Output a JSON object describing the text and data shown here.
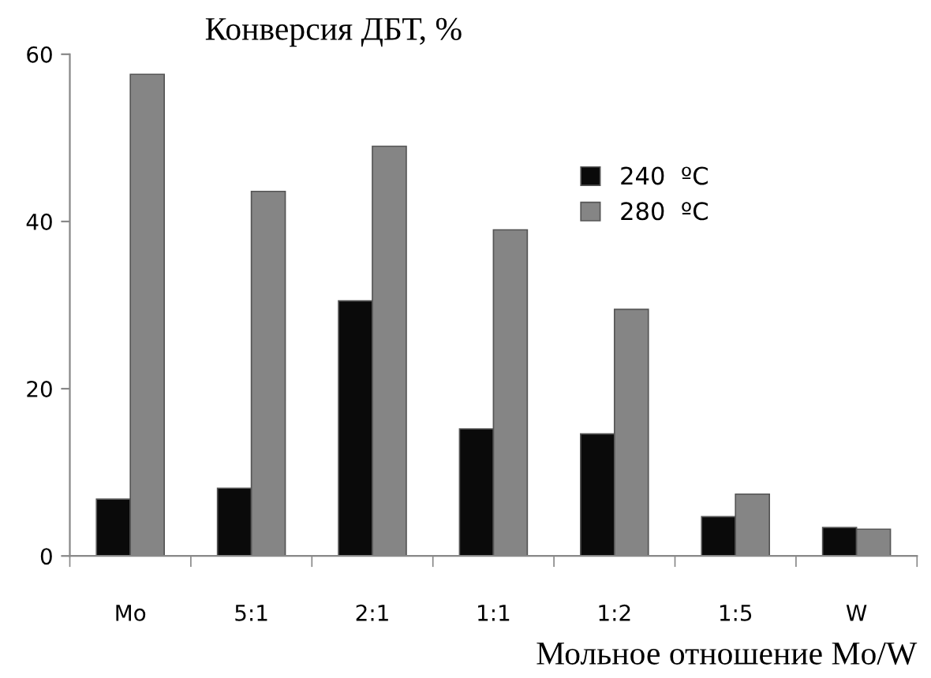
{
  "chart_data": {
    "type": "bar",
    "title": "Конверсия ДБТ, %",
    "xlabel": "Мольное отношение Mo/W",
    "categories": [
      "Mo",
      "5:1",
      "2:1",
      "1:1",
      "1:2",
      "1:5",
      "W"
    ],
    "series": [
      {
        "name": "240  ºC",
        "color": "#0a0a0a",
        "values": [
          6.8,
          8.1,
          30.5,
          15.2,
          14.6,
          4.7,
          3.4
        ]
      },
      {
        "name": "280  ºC",
        "color": "#858585",
        "values": [
          57.6,
          43.6,
          49.0,
          39.0,
          29.5,
          7.4,
          3.2
        ]
      }
    ],
    "ylim": [
      0,
      60
    ],
    "yticks": [
      0,
      20,
      40,
      60
    ],
    "grid": false,
    "legend": "top right"
  }
}
